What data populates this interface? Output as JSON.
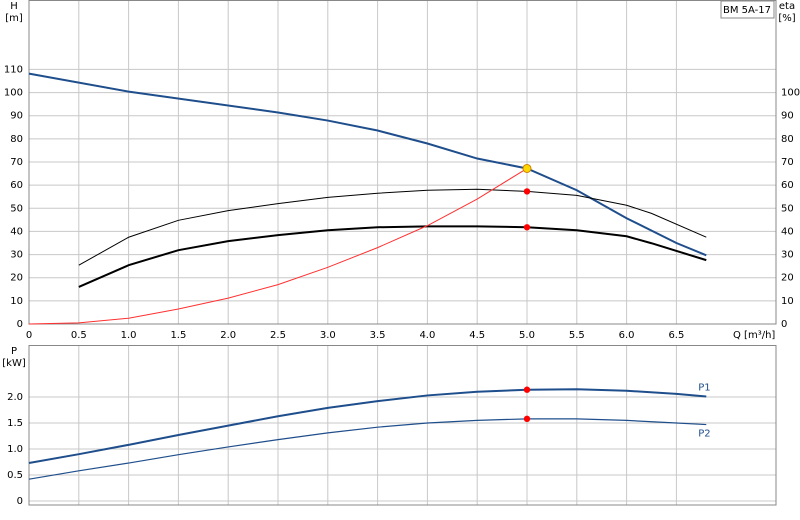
{
  "chart_data": [
    {
      "type": "line",
      "y_label": "H",
      "y_unit": "[m]",
      "y2_label": "eta",
      "y2_unit": "[%]",
      "x_label": "Q [m³/h]",
      "legend_title": "BM 5A-17",
      "xlim": [
        0,
        7.5
      ],
      "ylim": [
        0,
        140
      ],
      "y2lim": [
        0,
        140
      ],
      "xticks": [
        0,
        0.5,
        {
          "value": 1,
          "label": "1.0"
        },
        1.5,
        {
          "value": 2,
          "label": "2.0"
        },
        2.5,
        {
          "value": 3,
          "label": "3.0"
        },
        3.5,
        {
          "value": 4,
          "label": "4.0"
        },
        4.5,
        {
          "value": 5,
          "label": "5.0"
        },
        5.5,
        {
          "value": 6,
          "label": "6.0"
        },
        6.5
      ],
      "yticks": [
        0,
        10,
        20,
        30,
        40,
        50,
        60,
        70,
        80,
        90,
        100,
        110
      ],
      "y2ticks": [
        0,
        10,
        20,
        30,
        40,
        50,
        60,
        70,
        80,
        90,
        100
      ],
      "grid": true,
      "show_xtick_labels": true,
      "series": [
        {
          "color": "#1f4e8c",
          "width": 2,
          "axis": "y",
          "x": [
            0,
            1.0,
            2.5,
            3.0,
            3.5,
            4.0,
            4.5,
            5.0,
            5.5,
            6.0,
            6.5,
            6.8
          ],
          "values": [
            108.2,
            100.4,
            91.4,
            87.9,
            83.6,
            78,
            71.5,
            67.2,
            57.8,
            45.7,
            35,
            29.7
          ]
        },
        {
          "color": "#000000",
          "width": 1,
          "axis": "y2",
          "x": [
            0.5,
            1.0,
            1.5,
            2.0,
            2.5,
            3.0,
            3.5,
            4.0,
            4.5,
            5.0,
            5.5,
            6.0,
            6.25,
            6.8
          ],
          "values": [
            25.4,
            37.5,
            44.8,
            49,
            52,
            54.7,
            56.5,
            57.8,
            58.2,
            57.3,
            55.6,
            51.3,
            47.8,
            37.5
          ]
        },
        {
          "color": "#000000",
          "width": 2,
          "axis": "y2",
          "x": [
            0.5,
            1.0,
            1.5,
            2.0,
            2.5,
            3.0,
            3.5,
            4.0,
            4.5,
            5.0,
            5.5,
            6.0,
            6.25,
            6.8
          ],
          "values": [
            16,
            25.4,
            31.9,
            35.8,
            38.4,
            40.5,
            41.8,
            42.2,
            42.2,
            41.8,
            40.5,
            37.9,
            34.9,
            27.6
          ]
        },
        {
          "color": "#ff3030",
          "width": 1,
          "axis": "y2",
          "x": [
            0,
            0.5,
            1.0,
            1.5,
            2.0,
            2.5,
            3.0,
            3.5,
            4.0,
            4.5,
            5.0
          ],
          "values": [
            0,
            0.5,
            2.5,
            6.5,
            11.2,
            17,
            24.5,
            33,
            42.5,
            54,
            67.2
          ]
        }
      ],
      "points": [
        {
          "x": 5.0,
          "y": 67.2,
          "axis": "y",
          "color": "#ffd700"
        },
        {
          "x": 5.0,
          "y": 57.3,
          "axis": "y2",
          "color": "#ff0000"
        },
        {
          "x": 5.0,
          "y": 41.8,
          "axis": "y2",
          "color": "#ff0000"
        }
      ]
    },
    {
      "type": "line",
      "y_label": "P",
      "y_unit": "[kW]",
      "xlim": [
        0,
        7.5
      ],
      "ylim": [
        0,
        3.0
      ],
      "xticks": [
        0,
        0.5,
        1,
        1.5,
        2,
        2.5,
        3,
        3.5,
        4,
        4.5,
        5,
        5.5,
        6,
        6.5
      ],
      "yticks": [
        0,
        0.5,
        {
          "value": 1,
          "label": "1.0"
        },
        1.5,
        {
          "value": 2,
          "label": "2.0"
        }
      ],
      "grid": true,
      "show_xtick_labels": false,
      "series": [
        {
          "name": "P1",
          "color": "#1f4e8c",
          "width": 2,
          "axis": "y",
          "x": [
            0,
            0.5,
            1.0,
            1.5,
            2.0,
            2.5,
            3.0,
            3.5,
            4.0,
            4.5,
            5.0,
            5.5,
            6.0,
            6.5,
            6.8
          ],
          "values": [
            0.73,
            0.9,
            1.08,
            1.27,
            1.45,
            1.63,
            1.79,
            1.92,
            2.03,
            2.1,
            2.14,
            2.15,
            2.12,
            2.06,
            2.01
          ]
        },
        {
          "name": "P2",
          "color": "#1f4e8c",
          "width": 1.2,
          "axis": "y",
          "x": [
            0,
            0.5,
            1.0,
            1.5,
            2.0,
            2.5,
            3.0,
            3.5,
            4.0,
            4.5,
            5.0,
            5.5,
            6.0,
            6.5,
            6.8
          ],
          "values": [
            0.42,
            0.58,
            0.73,
            0.89,
            1.04,
            1.18,
            1.31,
            1.42,
            1.5,
            1.55,
            1.58,
            1.58,
            1.55,
            1.5,
            1.47
          ]
        }
      ],
      "points": [
        {
          "x": 5.0,
          "y": 2.14,
          "axis": "y",
          "color": "#ff0000"
        },
        {
          "x": 5.0,
          "y": 1.58,
          "axis": "y",
          "color": "#ff0000"
        }
      ]
    }
  ]
}
